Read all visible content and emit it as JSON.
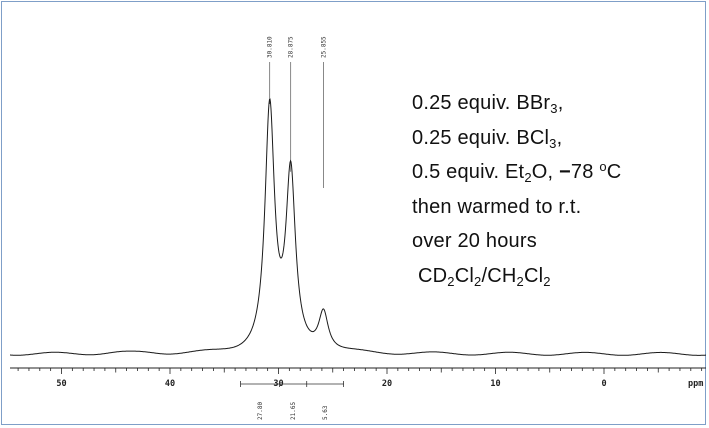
{
  "chart_data": {
    "type": "line",
    "title": "",
    "xlabel": "ppm",
    "ylabel": "",
    "xlim": [
      55,
      -10
    ],
    "x_axis_reversed": true,
    "x_ticks": [
      50,
      40,
      30,
      20,
      10,
      0
    ],
    "x_tick_labels": [
      "50",
      "40",
      "30",
      "20",
      "10",
      "0"
    ],
    "grid": false,
    "peaks": [
      {
        "shift_label": "30.810",
        "shift": 30.81,
        "relative_height": 1.0
      },
      {
        "shift_label": "28.875",
        "shift": 28.875,
        "relative_height": 0.72
      },
      {
        "shift_label": "25.855",
        "shift": 25.855,
        "relative_height": 0.16
      }
    ],
    "integrals": [
      {
        "label": "27.80",
        "value": 27.8
      },
      {
        "label": "21.65",
        "value": 21.65
      },
      {
        "label": "5.63",
        "value": 5.63
      }
    ]
  },
  "annotation": {
    "line1": {
      "a": "0.25 equiv. BBr",
      "sub": "3",
      "b": ","
    },
    "line2": {
      "a": "0.25 equiv. BCl",
      "sub": "3",
      "b": ","
    },
    "line3": {
      "a": "0.5 equiv. Et",
      "sub": "2",
      "b": "O, ",
      "dash": "−",
      "c": "78 ",
      "sup": "o",
      "d": "C"
    },
    "line4": "then warmed to r.t.",
    "line5": "over 20 hours",
    "line6": {
      "a": "CD",
      "s1": "2",
      "b": "Cl",
      "s2": "2",
      "c": "/CH",
      "s3": "2",
      "d": "Cl",
      "s4": "2"
    }
  },
  "colors": {
    "frame": "#7f9fc8",
    "trace": "#1a1a1a"
  }
}
